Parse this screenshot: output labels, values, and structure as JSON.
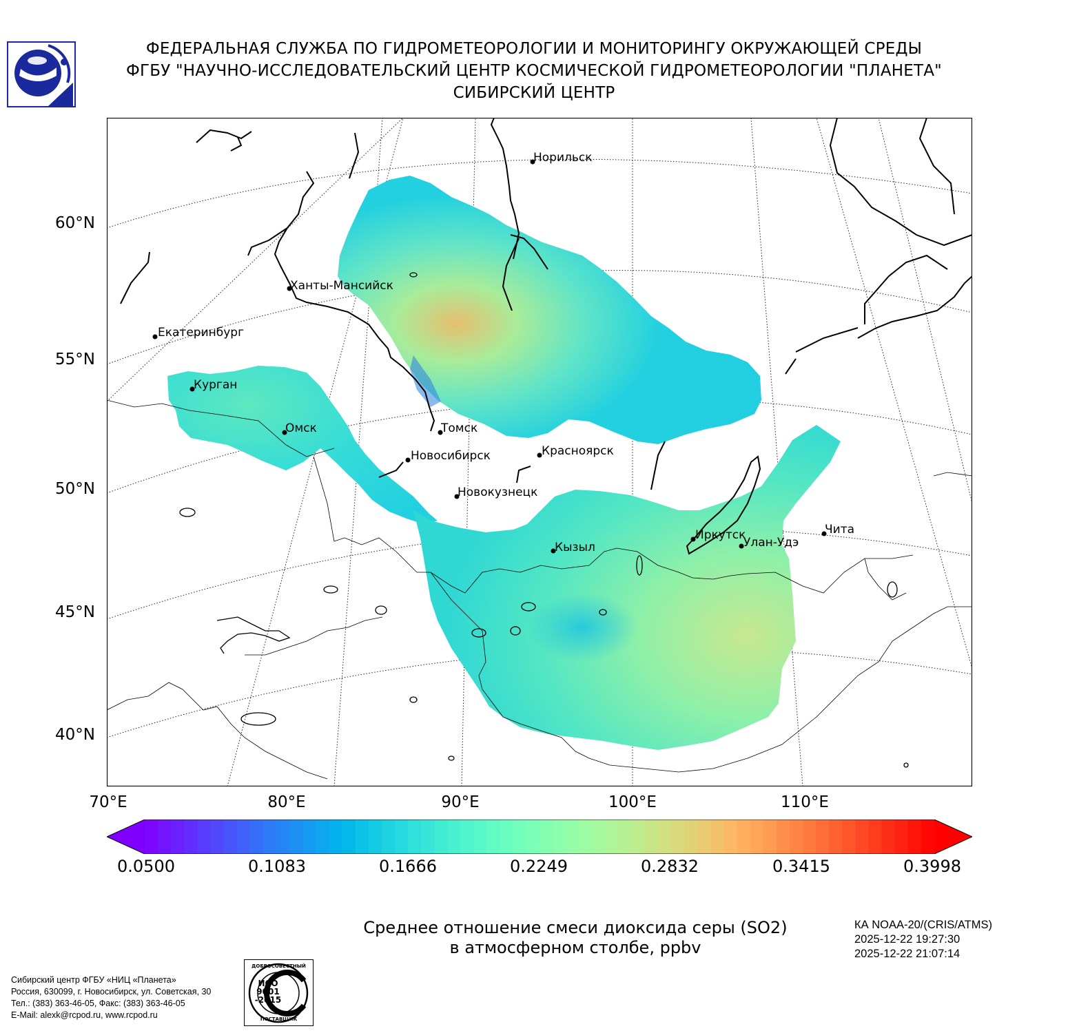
{
  "header": {
    "line1": "ФЕДЕРАЛЬНАЯ СЛУЖБА ПО ГИДРОМЕТЕОРОЛОГИИ И МОНИТОРИНГУ ОКРУЖАЮЩЕЙ СРЕДЫ",
    "line2": "ФГБУ \"НАУЧНО-ИССЛЕДОВАТЕЛЬСКИЙ ЦЕНТР КОСМИЧЕСКОЙ ГИДРОМЕТЕОРОЛОГИИ \"ПЛАНЕТА\"",
    "line3": "СИБИРСКИЙ ЦЕНТР"
  },
  "map": {
    "lat_labels": [
      "60°N",
      "55°N",
      "50°N",
      "45°N",
      "40°N"
    ],
    "lon_labels": [
      "70°E",
      "80°E",
      "90°E",
      "100°E",
      "110°E"
    ],
    "cities": [
      {
        "name": "Норильск"
      },
      {
        "name": "Ханты-Мансийск"
      },
      {
        "name": "Екатеринбург"
      },
      {
        "name": "Курган"
      },
      {
        "name": "Омск"
      },
      {
        "name": "Томск"
      },
      {
        "name": "Новосибирск"
      },
      {
        "name": "Красноярск"
      },
      {
        "name": "Новокузнецк"
      },
      {
        "name": "Кызыл"
      },
      {
        "name": "Иркутск"
      },
      {
        "name": "Улан-Удэ"
      },
      {
        "name": "Чита"
      }
    ]
  },
  "colorbar": {
    "ticks": [
      "0.0500",
      "0.1083",
      "0.1666",
      "0.2249",
      "0.2832",
      "0.3415",
      "0.3998"
    ],
    "min": 0.05,
    "max": 0.3998,
    "colormap": "rainbow"
  },
  "caption": {
    "line1": "Среднее отношение смеси диоксида серы (SO2)",
    "line2": "в атмосферном столбе, ppbv"
  },
  "satellite": {
    "name": "КА NOAA-20/(CRIS/ATMS)",
    "time_start": "2025-12-22 19:27:30",
    "time_end": "2025-12-22 21:07:14"
  },
  "address": {
    "line1": "Сибирский центр ФГБУ «НИЦ «Планета»",
    "line2": "Россия, 630099, г. Новосибирск, ул. Советская, 30",
    "line3": "Тел.: (383) 363-46-05, Факс: (383) 363-46-05",
    "line4": "E-Mail: alexk@rcpod.ru, www.rcpod.ru"
  },
  "iso_badge": {
    "top": "ДОБРОСОВЕСТНЫЙ",
    "l1": "ИСО",
    "l2": "9001",
    "l3": "-2015",
    "bottom": "ПОСТАВЩИК"
  },
  "colors": {
    "logo_blue": "#1a2a9c",
    "field_cyan": "#22d0e0",
    "field_green": "#80f0b0",
    "field_yellow": "#c8e890",
    "field_orange": "#e6bf70"
  }
}
